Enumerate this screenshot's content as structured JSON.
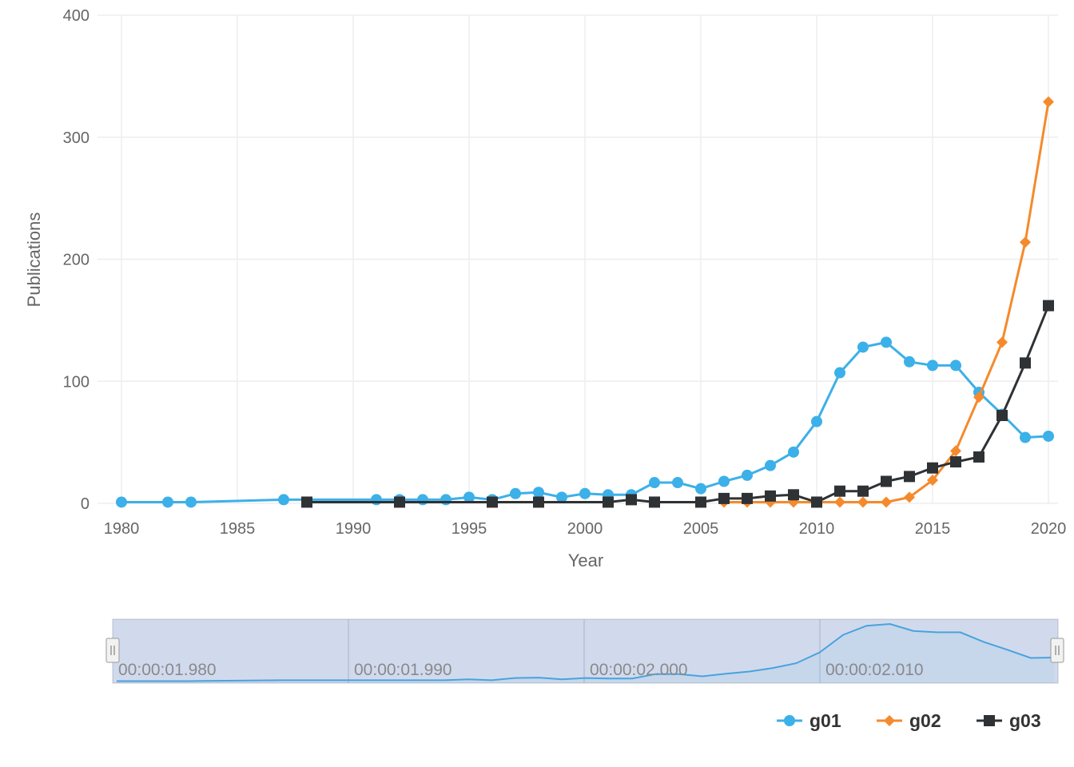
{
  "chart_data": {
    "type": "line",
    "xlabel": "Year",
    "ylabel": "Publications",
    "xlim": [
      1980,
      2020
    ],
    "ylim": [
      0,
      400
    ],
    "x_ticks": [
      "1980",
      "1985",
      "1990",
      "1995",
      "2000",
      "2005",
      "2010",
      "2015",
      "2020"
    ],
    "y_ticks": [
      "0",
      "100",
      "200",
      "300",
      "400"
    ],
    "grid": true,
    "legend_position": "bottom-right",
    "series": [
      {
        "name": "g01",
        "color": "#3cb0e8",
        "marker": "circle",
        "x": [
          1980,
          1982,
          1983,
          1987,
          1991,
          1992,
          1993,
          1994,
          1995,
          1996,
          1997,
          1998,
          1999,
          2000,
          2001,
          2002,
          2003,
          2004,
          2005,
          2006,
          2007,
          2008,
          2009,
          2010,
          2011,
          2012,
          2013,
          2014,
          2015,
          2016,
          2017,
          2018,
          2019,
          2020
        ],
        "values": [
          1,
          1,
          1,
          3,
          3,
          3,
          3,
          3,
          5,
          3,
          8,
          9,
          5,
          8,
          7,
          7,
          17,
          17,
          12,
          18,
          23,
          31,
          42,
          67,
          107,
          128,
          132,
          116,
          113,
          113,
          91,
          73,
          54,
          55
        ]
      },
      {
        "name": "g02",
        "color": "#f58a2c",
        "marker": "diamond",
        "x": [
          2006,
          2007,
          2008,
          2009,
          2010,
          2011,
          2012,
          2013,
          2014,
          2015,
          2016,
          2017,
          2018,
          2019,
          2020
        ],
        "values": [
          1,
          1,
          1,
          1,
          1,
          1,
          1,
          1,
          5,
          19,
          43,
          87,
          132,
          214,
          329
        ]
      },
      {
        "name": "g03",
        "color": "#2f3235",
        "marker": "square",
        "x": [
          1988,
          1992,
          1996,
          1998,
          2001,
          2002,
          2003,
          2005,
          2006,
          2007,
          2008,
          2009,
          2010,
          2011,
          2012,
          2013,
          2014,
          2015,
          2016,
          2017,
          2018,
          2019,
          2020
        ],
        "values": [
          1,
          1,
          1,
          1,
          1,
          3,
          1,
          1,
          4,
          4,
          6,
          7,
          1,
          10,
          10,
          18,
          22,
          29,
          34,
          38,
          72,
          115,
          162
        ]
      }
    ],
    "navigator": {
      "labels": [
        "00:00:01.980",
        "00:00:01.990",
        "00:00:02.000",
        "00:00:02.010"
      ],
      "series": "g01"
    }
  }
}
